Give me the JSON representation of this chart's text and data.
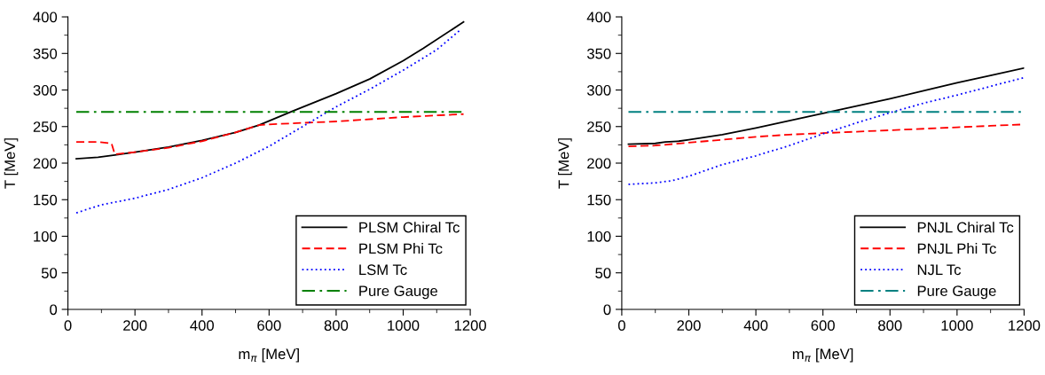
{
  "chart_data": [
    {
      "type": "line",
      "xlabel": "m$_{π}$ [MeV]",
      "ylabel": "T [MeV]",
      "xlim": [
        0,
        1200
      ],
      "ylim": [
        0,
        400
      ],
      "xticks": [
        0,
        200,
        400,
        600,
        800,
        1000,
        1200
      ],
      "yticks": [
        0,
        50,
        100,
        150,
        200,
        250,
        300,
        350,
        400
      ],
      "grid": false,
      "legend": "bottom right",
      "series": [
        {
          "name": "PLSM Chiral Tc",
          "color": "#000000",
          "line_style": "solid",
          "x": [
            25,
            90,
            140,
            200,
            300,
            400,
            500,
            570,
            670,
            800,
            900,
            1000,
            1060,
            1180
          ],
          "values": [
            206,
            208,
            211,
            215,
            222,
            231,
            242,
            252,
            271,
            295,
            315,
            340,
            357,
            393
          ]
        },
        {
          "name": "PLSM Phi Tc",
          "color": "#ff0000",
          "line_style": "dashed",
          "x": [
            25,
            90,
            130,
            140,
            200,
            300,
            400,
            500,
            570,
            600,
            800,
            1000,
            1180
          ],
          "values": [
            229,
            229,
            227,
            212,
            215,
            221,
            230,
            242,
            252,
            253,
            257,
            263,
            267
          ]
        },
        {
          "name": "LSM Tc",
          "color": "#0000ff",
          "line_style": "dotted",
          "x": [
            25,
            100,
            200,
            300,
            400,
            500,
            600,
            700,
            800,
            900,
            1000,
            1100,
            1170
          ],
          "values": [
            132,
            143,
            152,
            164,
            180,
            200,
            223,
            250,
            277,
            301,
            327,
            355,
            382
          ]
        },
        {
          "name": "Pure Gauge",
          "color": "#008000",
          "line_style": "dashdot",
          "x": [
            25,
            1180
          ],
          "values": [
            270,
            270
          ]
        }
      ]
    },
    {
      "type": "line",
      "xlabel": "m$_{π}$ [MeV]",
      "ylabel": "T [MeV]",
      "xlim": [
        0,
        1200
      ],
      "ylim": [
        0,
        400
      ],
      "xticks": [
        0,
        200,
        400,
        600,
        800,
        1000,
        1200
      ],
      "yticks": [
        0,
        50,
        100,
        150,
        200,
        250,
        300,
        350,
        400
      ],
      "grid": false,
      "legend": "bottom right",
      "series": [
        {
          "name": "PNJL Chiral Tc",
          "color": "#000000",
          "line_style": "solid",
          "x": [
            20,
            100,
            130,
            170,
            200,
            300,
            400,
            500,
            600,
            700,
            800,
            900,
            1000,
            1100,
            1200
          ],
          "values": [
            226,
            227,
            229,
            230,
            232,
            239,
            248,
            258,
            268,
            278,
            288,
            299,
            310,
            320,
            330
          ]
        },
        {
          "name": "PNJL Phi Tc",
          "color": "#ff0000",
          "line_style": "dashed",
          "x": [
            20,
            100,
            200,
            300,
            400,
            500,
            600,
            700,
            800,
            900,
            1000,
            1100,
            1200
          ],
          "values": [
            223,
            224,
            228,
            232,
            236,
            239,
            241,
            243,
            245,
            247,
            249,
            251,
            253
          ]
        },
        {
          "name": "NJL Tc",
          "color": "#0000ff",
          "line_style": "dotted",
          "x": [
            20,
            100,
            150,
            200,
            300,
            400,
            500,
            600,
            700,
            800,
            900,
            1000,
            1100,
            1200
          ],
          "values": [
            171,
            173,
            176,
            182,
            198,
            210,
            224,
            240,
            255,
            269,
            282,
            293,
            305,
            317
          ]
        },
        {
          "name": "Pure Gauge",
          "color": "#008080",
          "line_style": "dashdot",
          "x": [
            20,
            1200
          ],
          "values": [
            270,
            270
          ]
        }
      ]
    }
  ]
}
